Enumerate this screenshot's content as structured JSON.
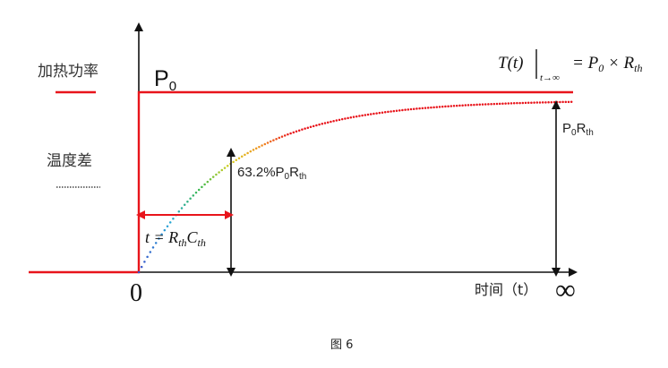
{
  "legend": {
    "power_label": "加热功率",
    "power_color": "#e8141b",
    "temp_label": "温度差",
    "temp_line_color": "#555555"
  },
  "curve_colors": [
    "#3a4fc8",
    "#2aa7d8",
    "#38b84a",
    "#d8d020",
    "#f09020",
    "#e8141b"
  ],
  "labels": {
    "p0": "P",
    "p0_sub": "0",
    "steady_state_lhs": "T(t)",
    "steady_state_sub": "t→∞",
    "steady_state_rhs_a": "= P",
    "steady_state_rhs_sub0": "0",
    "steady_state_rhs_b": " × R",
    "steady_state_rhs_subth": "th",
    "p0rth": "P",
    "p0rth_sub0": "0",
    "p0rth_r": "R",
    "p0rth_subth": "th",
    "percent": "63.2%P",
    "percent_sub0": "0",
    "percent_r": "R",
    "percent_subth": "th",
    "tau_a": "t = R",
    "tau_sub1": "th",
    "tau_b": "C",
    "tau_sub2": "th",
    "origin": "0",
    "x_axis": "时间（t）",
    "infinity": "∞",
    "caption": "图 6"
  }
}
